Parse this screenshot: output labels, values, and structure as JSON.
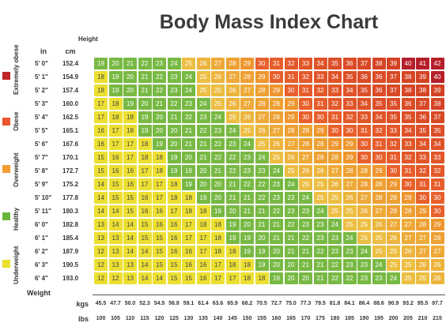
{
  "title": "Body Mass Index Chart",
  "headers": {
    "height": "Height",
    "inches": "in",
    "cm": "cm",
    "weight": "Weight",
    "kgs": "kgs",
    "lbs": "lbs"
  },
  "categories": [
    {
      "label": "Extremely obese",
      "color": "#c0242a"
    },
    {
      "label": "Obese",
      "color": "#e8582a"
    },
    {
      "label": "Overweight",
      "color": "#f39c34"
    },
    {
      "label": "Healthy",
      "color": "#6ab63d"
    },
    {
      "label": "Underweight",
      "color": "#e8e02c"
    }
  ],
  "chart_data": {
    "type": "heatmap",
    "title": "Body Mass Index Chart",
    "ylabel": "Height",
    "xlabel": "Weight",
    "heights_in": [
      "5' 0\"",
      "5' 1\"",
      "5' 2\"",
      "5' 3\"",
      "5' 4\"",
      "5' 5\"",
      "5' 6\"",
      "5' 7\"",
      "5' 8\"",
      "5' 9\"",
      "5' 10\"",
      "5' 11\"",
      "6' 0\"",
      "6' 1\"",
      "6' 2\"",
      "6' 3\"",
      "6' 4\""
    ],
    "heights_cm": [
      "152.4",
      "154.9",
      "157.4",
      "160.0",
      "162.5",
      "165.1",
      "167.6",
      "170.1",
      "172.7",
      "175.2",
      "177.8",
      "180.3",
      "182.8",
      "185.4",
      "187.9",
      "190.5",
      "193.0"
    ],
    "weights_kg": [
      "45.5",
      "47.7",
      "50.0",
      "52.3",
      "54.5",
      "56.8",
      "59.1",
      "61.4",
      "63.6",
      "65.9",
      "68.2",
      "70.5",
      "72.7",
      "75.0",
      "77.3",
      "79.5",
      "81.8",
      "84.1",
      "86.4",
      "88.6",
      "90.9",
      "93.2",
      "95.5",
      "97.7"
    ],
    "weights_lb": [
      "100",
      "105",
      "110",
      "115",
      "120",
      "125",
      "130",
      "135",
      "140",
      "145",
      "150",
      "155",
      "160",
      "165",
      "170",
      "175",
      "180",
      "185",
      "190",
      "195",
      "200",
      "205",
      "210",
      "215"
    ],
    "values": [
      [
        19,
        20,
        21,
        22,
        23,
        24,
        25,
        26,
        27,
        28,
        29,
        30,
        31,
        32,
        33,
        34,
        35,
        36,
        37,
        38,
        39,
        40,
        41,
        42
      ],
      [
        18,
        19,
        20,
        21,
        22,
        23,
        24,
        25,
        26,
        27,
        28,
        29,
        30,
        31,
        32,
        33,
        34,
        35,
        36,
        36,
        37,
        38,
        39,
        40
      ],
      [
        18,
        19,
        20,
        21,
        22,
        23,
        24,
        25,
        25,
        26,
        27,
        28,
        29,
        30,
        31,
        32,
        33,
        34,
        35,
        36,
        37,
        38,
        38,
        39
      ],
      [
        17,
        18,
        19,
        20,
        21,
        22,
        23,
        24,
        25,
        26,
        27,
        28,
        28,
        29,
        30,
        31,
        32,
        33,
        34,
        35,
        35,
        36,
        37,
        38
      ],
      [
        17,
        18,
        18,
        19,
        20,
        21,
        22,
        23,
        24,
        25,
        26,
        27,
        28,
        29,
        30,
        30,
        31,
        32,
        33,
        34,
        35,
        35,
        36,
        37
      ],
      [
        16,
        17,
        18,
        19,
        20,
        20,
        21,
        22,
        23,
        24,
        25,
        26,
        27,
        28,
        28,
        29,
        30,
        30,
        31,
        32,
        33,
        34,
        35,
        35
      ],
      [
        16,
        17,
        17,
        18,
        19,
        20,
        21,
        21,
        22,
        23,
        24,
        25,
        26,
        27,
        28,
        28,
        29,
        29,
        30,
        31,
        32,
        33,
        34,
        34
      ],
      [
        15,
        16,
        17,
        18,
        18,
        19,
        20,
        21,
        22,
        22,
        23,
        24,
        25,
        26,
        27,
        28,
        28,
        29,
        30,
        30,
        31,
        32,
        33,
        33
      ],
      [
        15,
        16,
        16,
        17,
        18,
        19,
        19,
        20,
        21,
        22,
        23,
        23,
        24,
        25,
        26,
        26,
        27,
        28,
        28,
        29,
        30,
        31,
        32,
        32
      ],
      [
        14,
        15,
        16,
        17,
        17,
        18,
        19,
        20,
        20,
        21,
        22,
        22,
        23,
        24,
        25,
        25,
        26,
        27,
        28,
        28,
        29,
        30,
        31,
        31
      ],
      [
        14,
        15,
        15,
        16,
        17,
        18,
        18,
        19,
        20,
        21,
        21,
        22,
        23,
        23,
        24,
        25,
        25,
        26,
        27,
        28,
        28,
        29,
        30,
        30
      ],
      [
        14,
        14,
        15,
        16,
        16,
        17,
        18,
        18,
        19,
        20,
        21,
        21,
        22,
        23,
        23,
        24,
        25,
        25,
        26,
        27,
        28,
        28,
        29,
        30
      ],
      [
        13,
        14,
        14,
        15,
        16,
        16,
        17,
        18,
        18,
        19,
        20,
        21,
        21,
        22,
        23,
        23,
        24,
        25,
        25,
        26,
        27,
        27,
        28,
        29
      ],
      [
        13,
        13,
        14,
        15,
        15,
        16,
        17,
        17,
        18,
        19,
        19,
        20,
        21,
        21,
        22,
        23,
        23,
        24,
        25,
        25,
        26,
        27,
        27,
        28
      ],
      [
        12,
        13,
        14,
        14,
        15,
        16,
        16,
        17,
        18,
        18,
        19,
        19,
        20,
        21,
        21,
        22,
        23,
        23,
        24,
        25,
        25,
        26,
        27,
        27
      ],
      [
        12,
        13,
        13,
        14,
        15,
        15,
        16,
        16,
        17,
        18,
        18,
        19,
        20,
        20,
        21,
        21,
        22,
        23,
        23,
        24,
        25,
        25,
        26,
        26
      ],
      [
        12,
        12,
        13,
        14,
        14,
        15,
        15,
        16,
        17,
        17,
        18,
        18,
        19,
        20,
        20,
        21,
        22,
        22,
        23,
        23,
        24,
        25,
        25,
        26
      ]
    ]
  }
}
